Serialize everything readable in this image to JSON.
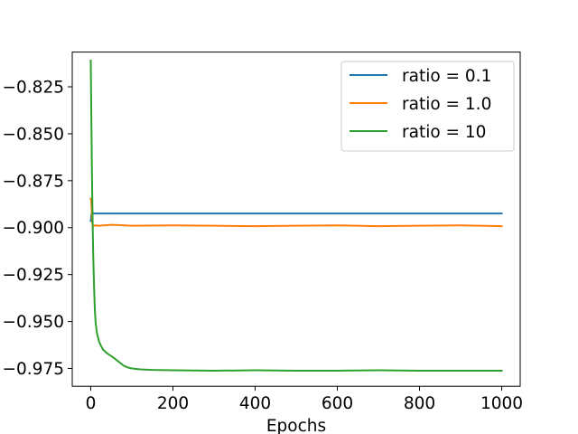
{
  "chart_data": {
    "type": "line",
    "title": "",
    "xlabel": "Epochs",
    "ylabel": "",
    "xlim": [
      -45,
      1045
    ],
    "ylim": [
      -0.9845,
      -0.8065
    ],
    "xticks": [
      0,
      200,
      400,
      600,
      800,
      1000
    ],
    "yticks": [
      -0.825,
      -0.85,
      -0.875,
      -0.9,
      -0.925,
      -0.95,
      -0.975
    ],
    "xtick_labels": [
      "0",
      "200",
      "400",
      "600",
      "800",
      "1000"
    ],
    "ytick_labels": [
      "−0.825",
      "−0.850",
      "−0.875",
      "−0.900",
      "−0.925",
      "−0.950",
      "−0.975"
    ],
    "grid": false,
    "legend_position": "top-right",
    "series": [
      {
        "name": "ratio = 0.1",
        "color": "#1f77b4",
        "x": [
          0,
          2,
          4,
          10,
          50,
          100,
          200,
          300,
          400,
          500,
          600,
          700,
          800,
          900,
          1000
        ],
        "y": [
          -0.8965,
          -0.8925,
          -0.8925,
          -0.8925,
          -0.8925,
          -0.8925,
          -0.8925,
          -0.8925,
          -0.8925,
          -0.8925,
          -0.8925,
          -0.8925,
          -0.8925,
          -0.8925,
          -0.8925
        ]
      },
      {
        "name": "ratio = 1.0",
        "color": "#ff7f0e",
        "x": [
          0,
          1,
          2,
          3,
          4,
          6,
          10,
          20,
          50,
          100,
          200,
          300,
          400,
          500,
          600,
          700,
          800,
          900,
          1000
        ],
        "y": [
          -0.8845,
          -0.8855,
          -0.889,
          -0.895,
          -0.898,
          -0.8992,
          -0.8988,
          -0.899,
          -0.8985,
          -0.899,
          -0.8988,
          -0.899,
          -0.8992,
          -0.899,
          -0.8988,
          -0.8992,
          -0.899,
          -0.8988,
          -0.8992
        ]
      },
      {
        "name": "ratio = 10",
        "color": "#2ca02c",
        "x": [
          0,
          1,
          2,
          3,
          4,
          5,
          6,
          8,
          10,
          12,
          15,
          20,
          25,
          30,
          40,
          50,
          60,
          70,
          80,
          90,
          100,
          120,
          150,
          200,
          300,
          400,
          500,
          600,
          700,
          800,
          900,
          1000
        ],
        "y": [
          -0.811,
          -0.832,
          -0.852,
          -0.872,
          -0.888,
          -0.902,
          -0.914,
          -0.931,
          -0.944,
          -0.951,
          -0.956,
          -0.9605,
          -0.963,
          -0.965,
          -0.967,
          -0.9685,
          -0.97,
          -0.9718,
          -0.9735,
          -0.9745,
          -0.975,
          -0.9755,
          -0.9758,
          -0.976,
          -0.9762,
          -0.976,
          -0.9762,
          -0.9762,
          -0.976,
          -0.9762,
          -0.9762,
          -0.9762
        ]
      }
    ]
  }
}
